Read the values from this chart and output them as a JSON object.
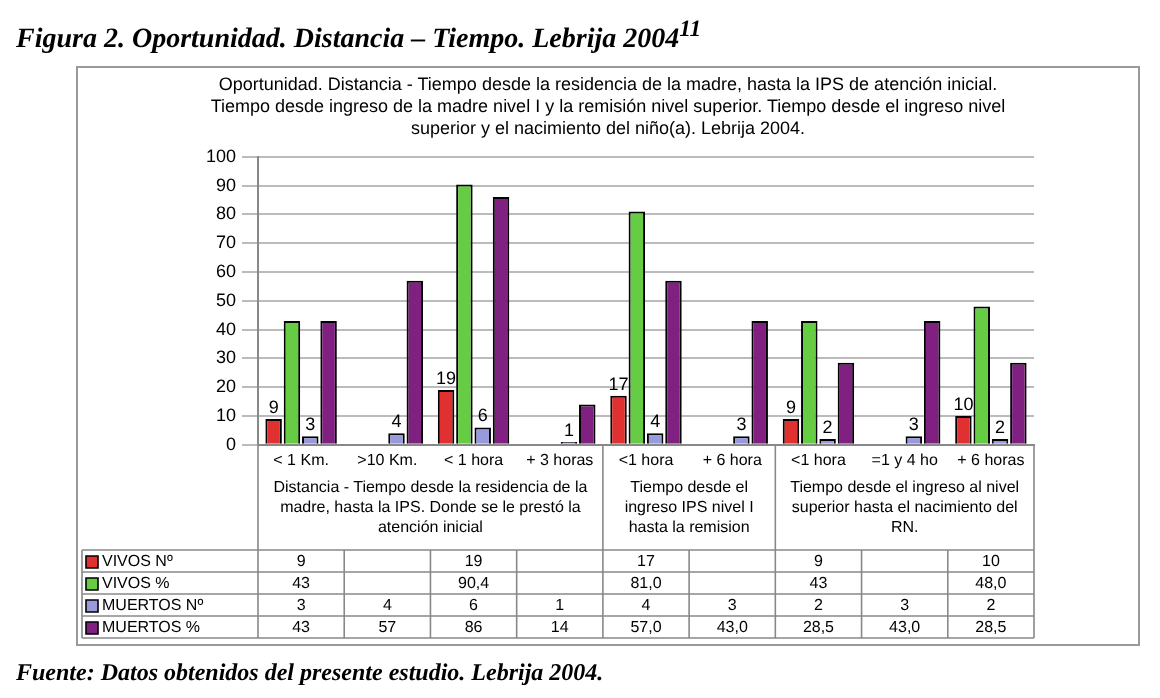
{
  "chart_data": {
    "type": "bar",
    "title": "Figura 2. Oportunidad. Distancia – Tiempo. Lebrija 2004$^{11}$",
    "subtitle": "Oportunidad. Distancia - Tiempo desde la residencia de la madre, hasta la IPS  de atención inicial. Tiempo desde ingreso de la madre nivel I y la remisión nivel superior. Tiempo desde el ingreso nivel superior y el nacimiento del niño(a). Lebrija 2004.",
    "categories": [
      "< 1 Km.",
      ">10 Km.",
      "< 1 hora",
      "+ 3 horas",
      "<1 hora",
      "+ 6 hora",
      "<1 hora",
      "=1 y 4 ho",
      "+ 6 horas"
    ],
    "annotations": [
      "Distancia - Tiempo desde la residencia de la madre, hasta la IPS. Donde se le prestó la atención inicial",
      "Tiempo desde el ingreso IPS nivel I hasta la remision",
      "Tiempo desde el ingreso al nivel superior hasta el nacimiento del RN.",
      "Fuente: Datos obtenidos del presente estudio. Lebrija 2004."
    ],
    "series": [
      {
        "name": "VIVOS Nº",
        "color": "#e03030",
        "values": [
          9,
          null,
          19,
          null,
          17,
          null,
          9,
          null,
          10
        ],
        "value_labels": [
          "9",
          null,
          "19",
          null,
          "17",
          null,
          "9",
          null,
          "10"
        ]
      },
      {
        "name": "VIVOS %",
        "color": "#66cc44",
        "values": [
          43,
          null,
          90.4,
          null,
          81.0,
          null,
          43,
          null,
          48.0
        ],
        "value_labels": [
          "43",
          null,
          "90,4",
          null,
          "81,0",
          null,
          "43",
          null,
          "48,0"
        ]
      },
      {
        "name": "MUERTOS Nº",
        "color": "#9999dd",
        "values": [
          3,
          4,
          6,
          1,
          4,
          3,
          2,
          3,
          2
        ],
        "value_labels": [
          "3",
          "4",
          "6",
          "1",
          "4",
          "3",
          "2",
          "3",
          "2"
        ]
      },
      {
        "name": "MUERTOS %",
        "color": "#802080",
        "values": [
          43,
          57,
          86,
          14,
          57.0,
          43.0,
          28.5,
          43.0,
          28.5
        ],
        "value_labels": [
          "43",
          "57",
          "86",
          "14",
          "57,0",
          "43,0",
          "28,5",
          "43,0",
          "28,5"
        ]
      }
    ],
    "ylim": [
      0,
      100
    ],
    "yticks": [
      0,
      10,
      20,
      30,
      40,
      50,
      60,
      70,
      80,
      90,
      100
    ],
    "grid": "y",
    "legend": "bottom",
    "data_labels": true
  }
}
